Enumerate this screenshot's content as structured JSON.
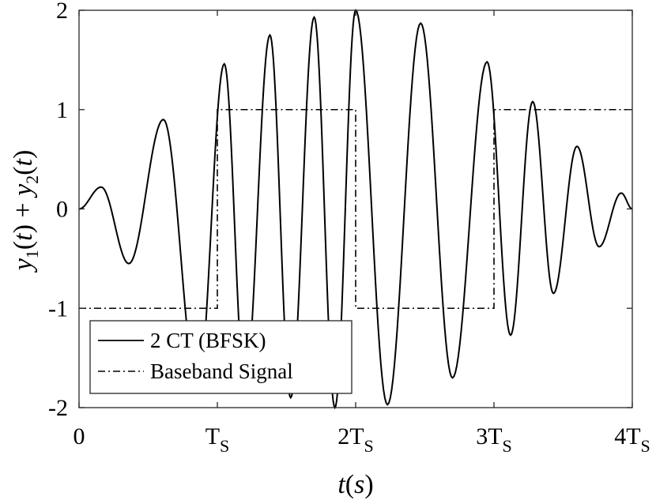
{
  "chart_data": {
    "type": "line",
    "xlabel": "t(s)",
    "ylabel": "y1(t) + y2(t)",
    "xlim": [
      0,
      4
    ],
    "ylim": [
      -2,
      2
    ],
    "grid": false,
    "legend_placement": "bottom-left",
    "x_ticks": [
      {
        "value": 0,
        "main": "0",
        "sub": ""
      },
      {
        "value": 1,
        "main": "T",
        "sub": "S"
      },
      {
        "value": 2,
        "main": "2T",
        "sub": "S"
      },
      {
        "value": 3,
        "main": "3T",
        "sub": "S"
      },
      {
        "value": 4,
        "main": "4T",
        "sub": "S"
      }
    ],
    "y_ticks": [
      {
        "value": 2,
        "label": "2"
      },
      {
        "value": 1,
        "label": "1"
      },
      {
        "value": 0,
        "label": "0"
      },
      {
        "value": -1,
        "label": "-1"
      },
      {
        "value": -2,
        "label": "-2"
      }
    ],
    "series": [
      {
        "name": "2 CT (BFSK)",
        "style": "solid",
        "x": [
          0,
          0.16,
          0.36,
          0.61,
          0.86,
          1.05,
          1.2,
          1.38,
          1.53,
          1.7,
          1.85,
          2.0,
          2.23,
          2.47,
          2.7,
          2.95,
          3.12,
          3.28,
          3.43,
          3.6,
          3.76,
          3.92,
          4.0
        ],
        "y": [
          0,
          0.22,
          -0.55,
          0.9,
          -1.82,
          1.46,
          -1.8,
          1.75,
          -1.9,
          1.93,
          -2.0,
          2.0,
          -1.97,
          1.87,
          -1.7,
          1.48,
          -1.27,
          1.08,
          -0.85,
          0.63,
          -0.38,
          0.16,
          0
        ]
      },
      {
        "name": "Baseband Signal",
        "style": "dashdot",
        "x": [
          0,
          1,
          1,
          2,
          2,
          3,
          3,
          4
        ],
        "y": [
          -1,
          -1,
          1,
          1,
          -1,
          -1,
          1,
          1
        ]
      }
    ]
  }
}
